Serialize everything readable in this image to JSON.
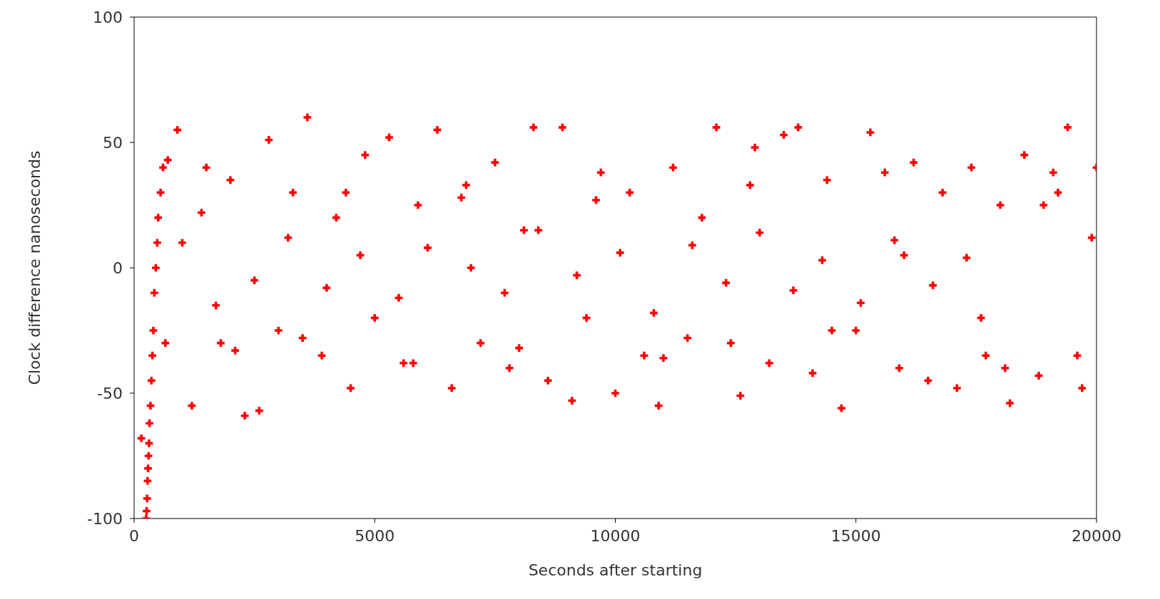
{
  "chart_data": {
    "type": "scatter",
    "xlabel": "Seconds after starting",
    "ylabel": "Clock difference nanoseconds",
    "marker": "cross",
    "xlim": [
      0,
      20000
    ],
    "xticks": [
      0,
      5000,
      10000,
      15000,
      20000
    ],
    "ylim": [
      -100,
      100
    ],
    "yticks": [
      -100,
      -50,
      0,
      50,
      100
    ],
    "series": [
      {
        "color": "#ff0000",
        "x": [
          150,
          250,
          260,
          270,
          280,
          290,
          300,
          310,
          320,
          340,
          360,
          380,
          400,
          420,
          450,
          480,
          500,
          550,
          600,
          700,
          900,
          1200,
          1500,
          1800,
          2000,
          2300,
          2600,
          2800,
          3000,
          3300,
          3600,
          3900,
          4200,
          4500,
          4800,
          5000,
          5300,
          5600,
          5900,
          6300,
          6600,
          6900,
          7200,
          7500,
          7800,
          8100,
          8300,
          8600,
          8900,
          9100,
          9400,
          9700,
          10000,
          10300,
          10600,
          10900,
          11200,
          11500,
          11800,
          12100,
          12400,
          12600,
          12900,
          13200,
          13500,
          13800,
          14100,
          14400,
          14700,
          15000,
          15300,
          15600,
          15900,
          16200,
          16500,
          16800,
          17100,
          17400,
          17700,
          18000,
          18200,
          18500,
          18800,
          19100,
          19400,
          19700,
          20000,
          1000,
          1700,
          2500,
          3200,
          4000,
          4700,
          5500,
          6100,
          7000,
          7700,
          8400,
          9200,
          10100,
          10800,
          11600,
          12300,
          13000,
          13700,
          14300,
          15100,
          15800,
          16600,
          17300,
          18100,
          18900,
          19600,
          650,
          1400,
          2100,
          3500,
          4400,
          5800,
          6800,
          8000,
          9600,
          11000,
          12800,
          14500,
          16000,
          17600,
          19200,
          19900
        ],
        "values": [
          -68,
          -100,
          -97,
          -92,
          -85,
          -80,
          -75,
          -70,
          -62,
          -55,
          -45,
          -35,
          -25,
          -10,
          0,
          10,
          20,
          30,
          40,
          43,
          55,
          -55,
          40,
          -30,
          35,
          -59,
          -57,
          51,
          -25,
          30,
          60,
          -35,
          20,
          -48,
          45,
          -20,
          52,
          -38,
          25,
          55,
          -48,
          33,
          -30,
          42,
          -40,
          15,
          56,
          -45,
          56,
          -53,
          -20,
          38,
          -50,
          30,
          -35,
          -55,
          40,
          -28,
          20,
          56,
          -30,
          -51,
          48,
          -38,
          53,
          56,
          -42,
          35,
          -56,
          -25,
          54,
          38,
          -40,
          42,
          -45,
          30,
          -48,
          40,
          -35,
          25,
          -54,
          45,
          -43,
          38,
          56,
          -48,
          40,
          10,
          -15,
          -5,
          12,
          -8,
          5,
          -12,
          8,
          0,
          -10,
          15,
          -3,
          6,
          -18,
          9,
          -6,
          14,
          -9,
          3,
          -14,
          11,
          -7,
          4,
          -40,
          25,
          -35,
          -30,
          22,
          -33,
          -28,
          30,
          -38,
          28,
          -32,
          27,
          -36,
          33,
          -25,
          5,
          -20,
          30,
          12
        ]
      }
    ]
  }
}
